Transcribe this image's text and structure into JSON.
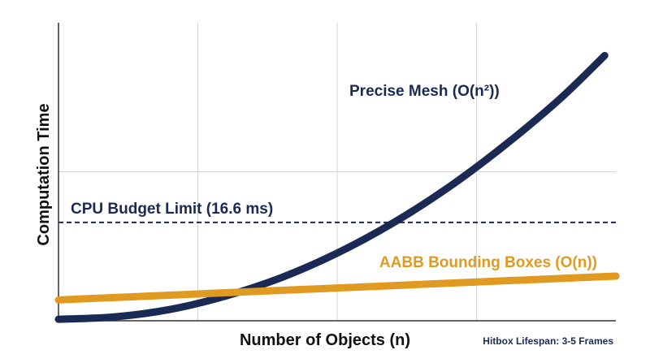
{
  "chart_data": {
    "type": "line",
    "title": "",
    "xlabel": "Number of Objects (n)",
    "ylabel": "Computation Time",
    "xlim": [
      0,
      100
    ],
    "ylim": [
      0,
      100
    ],
    "grid": true,
    "x_ticks_labeled": false,
    "y_ticks_labeled": false,
    "series": [
      {
        "name": "Precise Mesh (O(n²))",
        "color": "#1b2a55",
        "x": [
          0,
          10,
          20,
          30,
          40,
          50,
          60,
          70,
          80,
          90,
          98
        ],
        "y": [
          0.5,
          1.3,
          3.8,
          8.3,
          14.5,
          22.7,
          32.8,
          44.8,
          58.8,
          74.5,
          89
        ]
      },
      {
        "name": "AABB Bounding Boxes (O(n))",
        "color": "#e09a22",
        "x": [
          0,
          100
        ],
        "y": [
          7,
          15
        ]
      }
    ],
    "reference_lines": [
      {
        "label": "CPU Budget Limit (16.6 ms)",
        "y": 33,
        "color": "#1b2a55",
        "style": "dashed"
      }
    ],
    "annotations": [
      {
        "text": "Hitbox Lifespan: 3-5 Frames",
        "placement": "bottom-right"
      }
    ]
  }
}
